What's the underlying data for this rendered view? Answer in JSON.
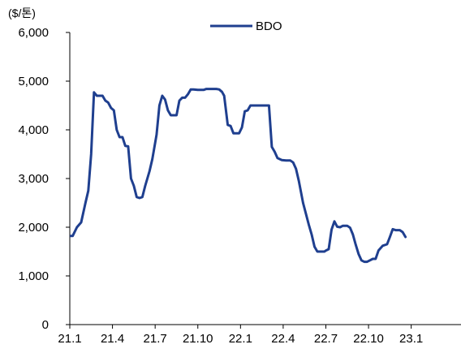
{
  "chart_data": {
    "type": "line",
    "unit_label": "($/톤)",
    "xlabel": "",
    "ylabel": "",
    "ylim": [
      0,
      6000
    ],
    "y_ticks": [
      0,
      1000,
      2000,
      3000,
      4000,
      5000,
      6000
    ],
    "y_tick_labels": [
      "0",
      "1,000",
      "2,000",
      "3,000",
      "4,000",
      "5,000",
      "6,000"
    ],
    "x_range": [
      0,
      27.5
    ],
    "x_ticks": [
      0,
      3,
      6,
      9,
      12,
      15,
      18,
      21,
      24
    ],
    "x_tick_labels": [
      "21.1",
      "21.4",
      "21.7",
      "21.10",
      "22.1",
      "22.4",
      "22.7",
      "22.10",
      "23.1"
    ],
    "grid": false,
    "legend_position": "top-center",
    "series": [
      {
        "name": "BDO",
        "color": "#1f3f8f",
        "points": [
          [
            0.0,
            1820
          ],
          [
            0.2,
            1820
          ],
          [
            0.5,
            2000
          ],
          [
            0.8,
            2100
          ],
          [
            1.1,
            2500
          ],
          [
            1.3,
            2750
          ],
          [
            1.5,
            3500
          ],
          [
            1.7,
            4770
          ],
          [
            1.9,
            4700
          ],
          [
            2.3,
            4700
          ],
          [
            2.5,
            4600
          ],
          [
            2.7,
            4560
          ],
          [
            2.9,
            4450
          ],
          [
            3.1,
            4400
          ],
          [
            3.3,
            4000
          ],
          [
            3.5,
            3850
          ],
          [
            3.7,
            3850
          ],
          [
            3.9,
            3670
          ],
          [
            4.1,
            3660
          ],
          [
            4.3,
            3000
          ],
          [
            4.5,
            2850
          ],
          [
            4.7,
            2620
          ],
          [
            4.9,
            2600
          ],
          [
            5.1,
            2620
          ],
          [
            5.3,
            2850
          ],
          [
            5.6,
            3150
          ],
          [
            5.8,
            3400
          ],
          [
            6.1,
            3900
          ],
          [
            6.3,
            4500
          ],
          [
            6.5,
            4700
          ],
          [
            6.7,
            4620
          ],
          [
            6.9,
            4400
          ],
          [
            7.1,
            4300
          ],
          [
            7.5,
            4300
          ],
          [
            7.7,
            4600
          ],
          [
            7.9,
            4660
          ],
          [
            8.1,
            4660
          ],
          [
            8.3,
            4730
          ],
          [
            8.5,
            4830
          ],
          [
            8.7,
            4830
          ],
          [
            9.0,
            4820
          ],
          [
            9.4,
            4820
          ],
          [
            9.6,
            4840
          ],
          [
            10.3,
            4840
          ],
          [
            10.5,
            4830
          ],
          [
            10.7,
            4780
          ],
          [
            10.85,
            4700
          ],
          [
            11.1,
            4100
          ],
          [
            11.3,
            4080
          ],
          [
            11.5,
            3930
          ],
          [
            11.9,
            3930
          ],
          [
            12.1,
            4050
          ],
          [
            12.3,
            4380
          ],
          [
            12.5,
            4400
          ],
          [
            12.7,
            4500
          ],
          [
            13.1,
            4500
          ],
          [
            13.5,
            4500
          ],
          [
            13.8,
            4500
          ],
          [
            14.0,
            4500
          ],
          [
            14.2,
            3650
          ],
          [
            14.4,
            3550
          ],
          [
            14.6,
            3420
          ],
          [
            14.9,
            3380
          ],
          [
            15.2,
            3370
          ],
          [
            15.5,
            3370
          ],
          [
            15.7,
            3330
          ],
          [
            15.9,
            3200
          ],
          [
            16.1,
            2950
          ],
          [
            16.4,
            2500
          ],
          [
            16.8,
            2050
          ],
          [
            17.0,
            1850
          ],
          [
            17.2,
            1600
          ],
          [
            17.4,
            1500
          ],
          [
            17.9,
            1500
          ],
          [
            18.0,
            1520
          ],
          [
            18.2,
            1550
          ],
          [
            18.4,
            1950
          ],
          [
            18.6,
            2120
          ],
          [
            18.8,
            2010
          ],
          [
            19.0,
            2000
          ],
          [
            19.2,
            2030
          ],
          [
            19.5,
            2030
          ],
          [
            19.7,
            1990
          ],
          [
            19.9,
            1850
          ],
          [
            20.1,
            1640
          ],
          [
            20.3,
            1450
          ],
          [
            20.5,
            1320
          ],
          [
            20.7,
            1290
          ],
          [
            20.9,
            1290
          ],
          [
            21.1,
            1320
          ],
          [
            21.3,
            1350
          ],
          [
            21.5,
            1350
          ],
          [
            21.7,
            1520
          ],
          [
            22.0,
            1620
          ],
          [
            22.3,
            1650
          ],
          [
            22.5,
            1800
          ],
          [
            22.7,
            1960
          ],
          [
            22.9,
            1940
          ],
          [
            23.2,
            1940
          ],
          [
            23.4,
            1900
          ],
          [
            23.6,
            1800
          ]
        ]
      }
    ]
  }
}
